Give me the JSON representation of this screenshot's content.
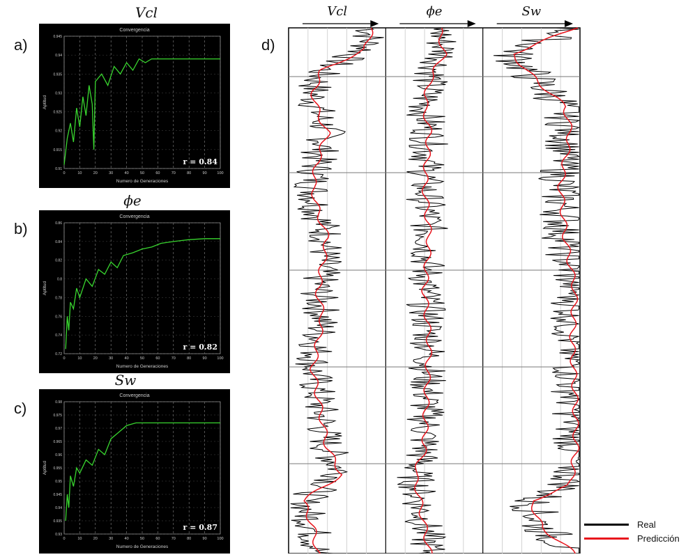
{
  "panels": [
    {
      "letter": "a)",
      "title": "Vcl",
      "chart_title": "Convergencia",
      "xlabel": "Numero de Generaciones",
      "ylabel": "Aptitud",
      "r_label": "r = 0.84",
      "xticks": [
        "0",
        "10",
        "20",
        "30",
        "40",
        "50",
        "60",
        "70",
        "80",
        "90",
        "100"
      ],
      "yticks": [
        "0.91",
        "0.915",
        "0.92",
        "0.925",
        "0.93",
        "0.935",
        "0.94",
        "0.945"
      ]
    },
    {
      "letter": "b)",
      "title": "ϕe",
      "chart_title": "Convergencia",
      "xlabel": "Numero de Generaciones",
      "ylabel": "Aptitud",
      "r_label": "r = 0.82",
      "xticks": [
        "0",
        "10",
        "20",
        "30",
        "40",
        "50",
        "60",
        "70",
        "80",
        "90",
        "100"
      ],
      "yticks": [
        "0.72",
        "0.74",
        "0.76",
        "0.78",
        "0.8",
        "0.82",
        "0.84",
        "0.86"
      ]
    },
    {
      "letter": "c)",
      "title": "Sw",
      "chart_title": "Convergencia",
      "xlabel": "Numero de Generaciones",
      "ylabel": "Aptitud",
      "r_label": "r = 0.87",
      "xticks": [
        "0",
        "10",
        "20",
        "30",
        "40",
        "50",
        "60",
        "70",
        "80",
        "90",
        "100"
      ],
      "yticks": [
        "0.93",
        "0.935",
        "0.94",
        "0.945",
        "0.95",
        "0.955",
        "0.96",
        "0.965",
        "0.97",
        "0.975",
        "0.98"
      ]
    }
  ],
  "log_panel": {
    "letter": "d)",
    "tracks": [
      "Vcl",
      "ϕe",
      "Sw"
    ]
  },
  "legend": {
    "real": "Real",
    "pred": "Predicción"
  },
  "colors": {
    "green": "#39d62f",
    "real": "#000000",
    "pred": "#e8141c"
  },
  "chart_data": [
    {
      "type": "line",
      "title": "Convergencia",
      "xlabel": "Numero de Generaciones",
      "ylabel": "Aptitud",
      "xlim": [
        0,
        100
      ],
      "ylim": [
        0.91,
        0.945
      ],
      "series": [
        {
          "values": [
            [
              0,
              0.911
            ],
            [
              2,
              0.918
            ],
            [
              4,
              0.922
            ],
            [
              6,
              0.917
            ],
            [
              8,
              0.926
            ],
            [
              10,
              0.921
            ],
            [
              12,
              0.929
            ],
            [
              14,
              0.924
            ],
            [
              16,
              0.932
            ],
            [
              18,
              0.927
            ],
            [
              19,
              0.915
            ],
            [
              20,
              0.933
            ],
            [
              24,
              0.935
            ],
            [
              28,
              0.932
            ],
            [
              32,
              0.937
            ],
            [
              36,
              0.935
            ],
            [
              40,
              0.938
            ],
            [
              44,
              0.936
            ],
            [
              48,
              0.939
            ],
            [
              52,
              0.938
            ],
            [
              56,
              0.939
            ],
            [
              60,
              0.939
            ],
            [
              100,
              0.939
            ]
          ]
        }
      ]
    },
    {
      "type": "line",
      "title": "Convergencia",
      "xlabel": "Numero de Generaciones",
      "ylabel": "Aptitud",
      "xlim": [
        0,
        100
      ],
      "ylim": [
        0.72,
        0.86
      ],
      "series": [
        {
          "values": [
            [
              1,
              0.725
            ],
            [
              2,
              0.76
            ],
            [
              3,
              0.745
            ],
            [
              4,
              0.775
            ],
            [
              6,
              0.768
            ],
            [
              8,
              0.79
            ],
            [
              10,
              0.78
            ],
            [
              14,
              0.8
            ],
            [
              18,
              0.792
            ],
            [
              22,
              0.81
            ],
            [
              26,
              0.805
            ],
            [
              30,
              0.818
            ],
            [
              34,
              0.812
            ],
            [
              38,
              0.825
            ],
            [
              44,
              0.828
            ],
            [
              50,
              0.832
            ],
            [
              56,
              0.834
            ],
            [
              62,
              0.838
            ],
            [
              70,
              0.84
            ],
            [
              80,
              0.842
            ],
            [
              90,
              0.843
            ],
            [
              100,
              0.843
            ]
          ]
        }
      ]
    },
    {
      "type": "line",
      "title": "Convergencia",
      "xlabel": "Numero de Generaciones",
      "ylabel": "Aptitud",
      "xlim": [
        0,
        100
      ],
      "ylim": [
        0.93,
        0.98
      ],
      "series": [
        {
          "values": [
            [
              1,
              0.935
            ],
            [
              2,
              0.945
            ],
            [
              3,
              0.94
            ],
            [
              4,
              0.952
            ],
            [
              6,
              0.948
            ],
            [
              8,
              0.955
            ],
            [
              10,
              0.953
            ],
            [
              14,
              0.958
            ],
            [
              18,
              0.956
            ],
            [
              22,
              0.962
            ],
            [
              26,
              0.96
            ],
            [
              30,
              0.966
            ],
            [
              34,
              0.968
            ],
            [
              40,
              0.971
            ],
            [
              46,
              0.972
            ],
            [
              50,
              0.972
            ],
            [
              100,
              0.972
            ]
          ]
        }
      ]
    },
    {
      "type": "line",
      "tracks": [
        "Vcl",
        "ϕe",
        "Sw"
      ],
      "series": [
        {
          "name": "Real"
        },
        {
          "name": "Predicción"
        }
      ],
      "depth_range": [
        0,
        100
      ],
      "vcl_pred": [
        [
          0,
          0.85
        ],
        [
          4,
          0.8
        ],
        [
          8,
          0.35
        ],
        [
          12,
          0.25
        ],
        [
          16,
          0.3
        ],
        [
          20,
          0.4
        ],
        [
          25,
          0.3
        ],
        [
          30,
          0.25
        ],
        [
          35,
          0.3
        ],
        [
          40,
          0.4
        ],
        [
          45,
          0.35
        ],
        [
          50,
          0.3
        ],
        [
          55,
          0.35
        ],
        [
          60,
          0.3
        ],
        [
          65,
          0.25
        ],
        [
          70,
          0.3
        ],
        [
          75,
          0.35
        ],
        [
          80,
          0.4
        ],
        [
          85,
          0.55
        ],
        [
          88,
          0.3
        ],
        [
          90,
          0.15
        ],
        [
          95,
          0.25
        ],
        [
          100,
          0.3
        ]
      ],
      "phie_pred": [
        [
          0,
          0.55
        ],
        [
          5,
          0.6
        ],
        [
          10,
          0.45
        ],
        [
          15,
          0.4
        ],
        [
          20,
          0.45
        ],
        [
          30,
          0.4
        ],
        [
          40,
          0.45
        ],
        [
          50,
          0.4
        ],
        [
          60,
          0.45
        ],
        [
          70,
          0.42
        ],
        [
          80,
          0.4
        ],
        [
          85,
          0.3
        ],
        [
          90,
          0.35
        ],
        [
          95,
          0.4
        ],
        [
          100,
          0.45
        ]
      ],
      "sw_pred": [
        [
          0,
          0.95
        ],
        [
          5,
          0.3
        ],
        [
          10,
          0.55
        ],
        [
          15,
          0.85
        ],
        [
          20,
          0.9
        ],
        [
          30,
          0.8
        ],
        [
          40,
          0.85
        ],
        [
          50,
          0.95
        ],
        [
          60,
          0.92
        ],
        [
          70,
          0.95
        ],
        [
          80,
          0.96
        ],
        [
          87,
          0.9
        ],
        [
          90,
          0.5
        ],
        [
          95,
          0.6
        ],
        [
          100,
          0.95
        ]
      ]
    }
  ]
}
